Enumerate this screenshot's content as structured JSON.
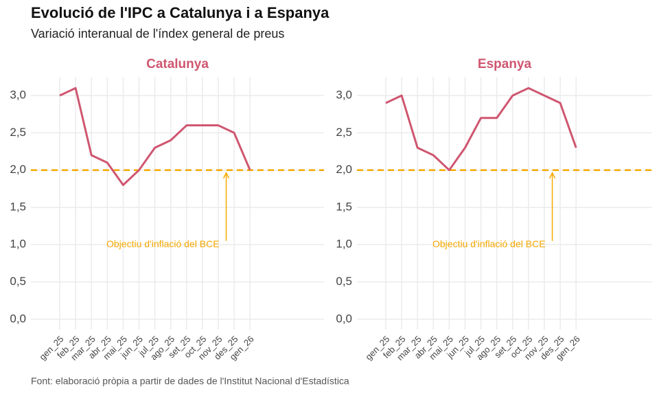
{
  "title": "Evolució de l'IPC a Catalunya i a Espanya",
  "subtitle": "Variació interanual de l'índex general de preus",
  "caption": "Font: elaboració pròpia a partir de dades de l'Institut Nacional d'Estadística",
  "chart_data": [
    {
      "type": "line",
      "title": "Catalunya",
      "categories": [
        "gen_25",
        "feb_25",
        "mar_25",
        "abr_25",
        "mai_25",
        "jun_25",
        "jul_25",
        "ago_25",
        "set_25",
        "oct_25",
        "nov_25",
        "des_25",
        "gen_26"
      ],
      "values": [
        3.0,
        3.1,
        2.2,
        2.1,
        1.8,
        2.0,
        2.3,
        2.4,
        2.6,
        2.6,
        2.6,
        2.5,
        2.0
      ],
      "color": "#cf5670",
      "ylim": [
        -0.14,
        3.25
      ],
      "yticks": [
        {
          "value": 0,
          "label": "0,0"
        },
        {
          "value": 0.5,
          "label": "0,5"
        },
        {
          "value": 1,
          "label": "1,0"
        },
        {
          "value": 1.5,
          "label": "1,5"
        },
        {
          "value": 2,
          "label": "2,0"
        },
        {
          "value": 2.5,
          "label": "2,5"
        },
        {
          "value": 3,
          "label": "3,0"
        }
      ],
      "grid": true,
      "hline": 2,
      "hline_color": "#f5a800",
      "annotation": "Objectiu d'inflació del BCE"
    },
    {
      "type": "line",
      "title": "Espanya",
      "categories": [
        "gen_25",
        "feb_25",
        "mar_25",
        "abr_25",
        "mai_25",
        "jun_25",
        "jul_25",
        "ago_25",
        "set_25",
        "oct_25",
        "nov_25",
        "des_25",
        "gen_26"
      ],
      "values": [
        2.9,
        3.0,
        2.3,
        2.2,
        2.0,
        2.3,
        2.7,
        2.7,
        3.0,
        3.1,
        3.0,
        2.9,
        2.3
      ],
      "color": "#cf5670",
      "ylim": [
        -0.14,
        3.25
      ],
      "yticks": [
        {
          "value": 0,
          "label": "0,0"
        },
        {
          "value": 0.5,
          "label": "0,5"
        },
        {
          "value": 1,
          "label": "1,0"
        },
        {
          "value": 1.5,
          "label": "1,5"
        },
        {
          "value": 2,
          "label": "2,0"
        },
        {
          "value": 2.5,
          "label": "2,5"
        },
        {
          "value": 3,
          "label": "3,0"
        }
      ],
      "grid": true,
      "hline": 2,
      "hline_color": "#f5a800",
      "annotation": "Objectiu d'inflació del BCE"
    }
  ]
}
